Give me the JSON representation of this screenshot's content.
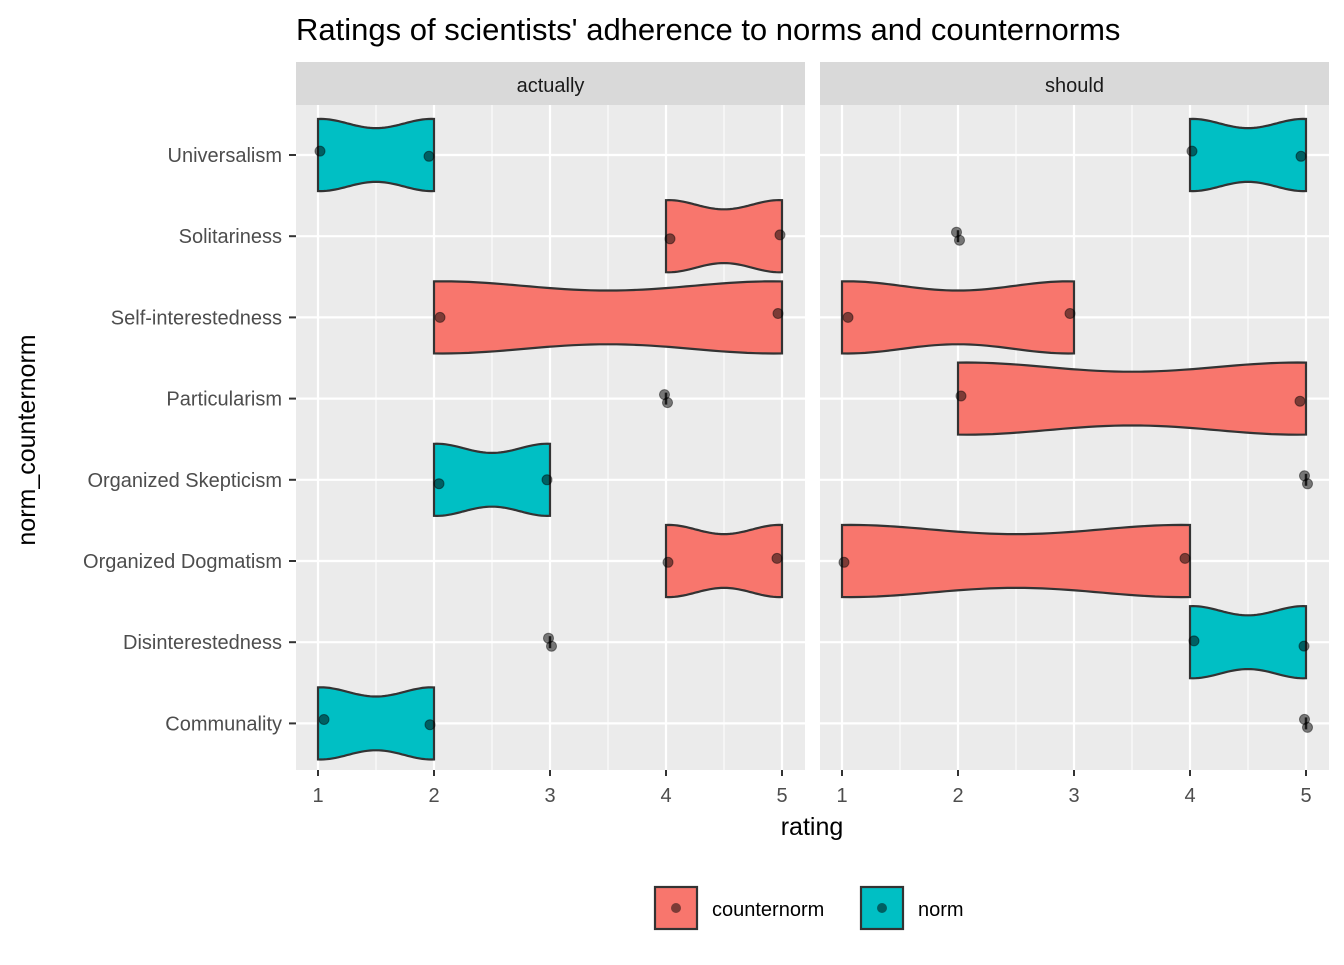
{
  "chart_data": {
    "type": "violin",
    "title": "Ratings of scientists' adherence to norms and counternorms",
    "xlabel": "rating",
    "ylabel": "norm_counternorm",
    "xlim": [
      1,
      5
    ],
    "xticks": [
      "1",
      "2",
      "3",
      "4",
      "5"
    ],
    "categories": [
      "Universalism",
      "Solitariness",
      "Self-interestedness",
      "Particularism",
      "Organized Skepticism",
      "Organized Dogmatism",
      "Disinterestedness",
      "Communality"
    ],
    "legend": {
      "position": "bottom",
      "items": [
        {
          "key": "counternorm",
          "label": "counternorm",
          "color": "#F8766D"
        },
        {
          "key": "norm",
          "label": "norm",
          "color": "#00BFC4"
        }
      ]
    },
    "grid": true,
    "panels": [
      {
        "name": "actually",
        "groups": [
          {
            "category": "Universalism",
            "type": "norm",
            "values": [
              1,
              2
            ]
          },
          {
            "category": "Solitariness",
            "type": "counternorm",
            "values": [
              4,
              5
            ]
          },
          {
            "category": "Self-interestedness",
            "type": "counternorm",
            "values": [
              2,
              5
            ]
          },
          {
            "category": "Particularism",
            "type": "counternorm",
            "values": [
              4,
              4
            ]
          },
          {
            "category": "Organized Skepticism",
            "type": "norm",
            "values": [
              2,
              3
            ]
          },
          {
            "category": "Organized Dogmatism",
            "type": "counternorm",
            "values": [
              4,
              5
            ]
          },
          {
            "category": "Disinterestedness",
            "type": "norm",
            "values": [
              3,
              3
            ]
          },
          {
            "category": "Communality",
            "type": "norm",
            "values": [
              1,
              2
            ]
          }
        ]
      },
      {
        "name": "should",
        "groups": [
          {
            "category": "Universalism",
            "type": "norm",
            "values": [
              4,
              5
            ]
          },
          {
            "category": "Solitariness",
            "type": "counternorm",
            "values": [
              2,
              2
            ]
          },
          {
            "category": "Self-interestedness",
            "type": "counternorm",
            "values": [
              1,
              3
            ]
          },
          {
            "category": "Particularism",
            "type": "counternorm",
            "values": [
              2,
              5
            ]
          },
          {
            "category": "Organized Skepticism",
            "type": "norm",
            "values": [
              5,
              5
            ]
          },
          {
            "category": "Organized Dogmatism",
            "type": "counternorm",
            "values": [
              1,
              4
            ]
          },
          {
            "category": "Disinterestedness",
            "type": "norm",
            "values": [
              4,
              5
            ]
          },
          {
            "category": "Communality",
            "type": "norm",
            "values": [
              5,
              5
            ]
          }
        ]
      }
    ]
  }
}
